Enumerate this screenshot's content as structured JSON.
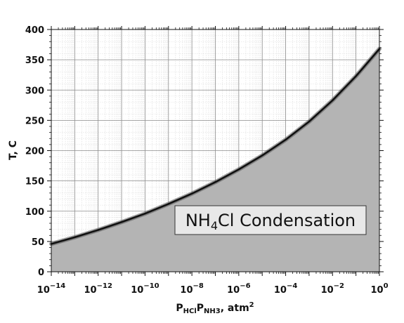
{
  "chart_data": {
    "type": "area",
    "x_scale": "log",
    "xlim": [
      1e-14,
      1
    ],
    "ylim": [
      0,
      400
    ],
    "x": [
      1e-14,
      1e-13,
      1e-12,
      1e-11,
      1e-10,
      1e-09,
      1e-08,
      1e-07,
      1e-06,
      1e-05,
      0.0001,
      0.001,
      0.01,
      0.1,
      1
    ],
    "series": [
      {
        "values": [
          46,
          57,
          69,
          82,
          96,
          112,
          129,
          148,
          169,
          192,
          218,
          248,
          283,
          323,
          368
        ],
        "color": "#111111",
        "fill": "#b4b4b4"
      }
    ],
    "x_ticks": [
      {
        "base": "10",
        "exp": "−14",
        "value": 1e-14
      },
      {
        "base": "10",
        "exp": "−12",
        "value": 1e-12
      },
      {
        "base": "10",
        "exp": "−10",
        "value": 1e-10
      },
      {
        "base": "10",
        "exp": "−8",
        "value": 1e-08
      },
      {
        "base": "10",
        "exp": "−6",
        "value": 1e-06
      },
      {
        "base": "10",
        "exp": "−4",
        "value": 0.0001
      },
      {
        "base": "10",
        "exp": "−2",
        "value": 0.01
      },
      {
        "base": "10",
        "exp": "0",
        "value": 1
      }
    ],
    "y_ticks": [
      "0",
      "50",
      "100",
      "150",
      "200",
      "250",
      "300",
      "350",
      "400"
    ],
    "xlabel": {
      "p1": "P",
      "s1": "HCl",
      "p2": "P",
      "s2": "NH3",
      "tail": ", atm",
      "sup": "2"
    },
    "ylabel": "T, C",
    "annotation": {
      "pre": "NH",
      "sub": "4",
      "post": "Cl Condensation"
    },
    "grid": true,
    "minor_grid": true,
    "colors": {
      "grid_major": "#8c8c8c",
      "grid_minor": "#d9d9d9",
      "fill": "#b4b4b4",
      "line": "#111111",
      "annotation_box": "#e8e8e8"
    }
  }
}
